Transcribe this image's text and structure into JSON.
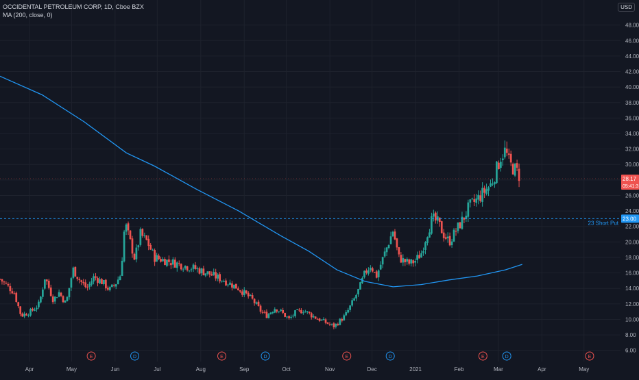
{
  "header": {
    "symbol_line": "OCCIDENTAL PETROLEUM CORP, 1D, Cboe BZX",
    "indicator_line": "MA (200, close, 0)"
  },
  "currency": "USD",
  "price_label": {
    "price": "28.17",
    "countdown": "05:41:3"
  },
  "level_label": {
    "value": "23.00",
    "text": "23 Short Put"
  },
  "colors": {
    "background": "#131722",
    "up": "#26a69a",
    "down": "#ef5350",
    "ma": "#2196f3",
    "level": "#2196f3",
    "grid": "#1e222d",
    "axis_text": "#b2b5be",
    "event_e": "#ef5350",
    "event_d": "#2196f3"
  },
  "chart_data": {
    "type": "candlestick",
    "ylim": [
      5.3,
      50.5
    ],
    "y_ticks": [
      "6.00",
      "8.00",
      "10.00",
      "12.00",
      "14.00",
      "16.00",
      "18.00",
      "20.00",
      "22.00",
      "24.00",
      "26.00",
      "28.00",
      "30.00",
      "32.00",
      "34.00",
      "36.00",
      "38.00",
      "40.00",
      "42.00",
      "44.00",
      "46.00",
      "48.00"
    ],
    "x_labels": [
      {
        "label": "Apr",
        "day": 11
      },
      {
        "label": "May",
        "day": 41
      },
      {
        "label": "Jun",
        "day": 72
      },
      {
        "label": "Jul",
        "day": 102
      },
      {
        "label": "Aug",
        "day": 133
      },
      {
        "label": "Sep",
        "day": 164
      },
      {
        "label": "Oct",
        "day": 194
      },
      {
        "label": "Nov",
        "day": 225
      },
      {
        "label": "Dec",
        "day": 255
      },
      {
        "label": "2021",
        "day": 286
      },
      {
        "label": "Feb",
        "day": 317
      },
      {
        "label": "Mar",
        "day": 345
      },
      {
        "label": "Apr",
        "day": 376
      },
      {
        "label": "May",
        "day": 406
      }
    ],
    "x_range": [
      -10,
      432
    ],
    "ma_points": [
      [
        -10,
        41.4
      ],
      [
        20,
        39.0
      ],
      [
        50,
        35.5
      ],
      [
        80,
        31.5
      ],
      [
        100,
        29.8
      ],
      [
        130,
        26.8
      ],
      [
        160,
        24.0
      ],
      [
        190,
        20.8
      ],
      [
        210,
        18.8
      ],
      [
        230,
        16.4
      ],
      [
        250,
        14.9
      ],
      [
        270,
        14.2
      ],
      [
        290,
        14.5
      ],
      [
        310,
        15.1
      ],
      [
        330,
        15.6
      ],
      [
        350,
        16.4
      ],
      [
        362,
        17.1
      ]
    ],
    "candles_keys": [
      [
        -10,
        15.2
      ],
      [
        0,
        13.5
      ],
      [
        5,
        10.5
      ],
      [
        12,
        11.0
      ],
      [
        18,
        12.0
      ],
      [
        22,
        15.5
      ],
      [
        28,
        12.5
      ],
      [
        32,
        13.5
      ],
      [
        37,
        12.0
      ],
      [
        42,
        16.5
      ],
      [
        47,
        15.0
      ],
      [
        52,
        14.0
      ],
      [
        57,
        15.5
      ],
      [
        63,
        14.8
      ],
      [
        68,
        13.8
      ],
      [
        72,
        14.5
      ],
      [
        76,
        15.8
      ],
      [
        79,
        22.5
      ],
      [
        82,
        20.5
      ],
      [
        86,
        17.8
      ],
      [
        90,
        21.0
      ],
      [
        95,
        20.0
      ],
      [
        100,
        18.0
      ],
      [
        110,
        17.5
      ],
      [
        120,
        17.0
      ],
      [
        130,
        16.5
      ],
      [
        140,
        15.8
      ],
      [
        150,
        15.0
      ],
      [
        160,
        14.0
      ],
      [
        170,
        12.5
      ],
      [
        176,
        11.0
      ],
      [
        180,
        10.5
      ],
      [
        186,
        11.5
      ],
      [
        190,
        11.0
      ],
      [
        196,
        10.0
      ],
      [
        200,
        10.8
      ],
      [
        206,
        11.2
      ],
      [
        214,
        10.3
      ],
      [
        222,
        9.6
      ],
      [
        228,
        9.1
      ],
      [
        232,
        9.8
      ],
      [
        236,
        10.5
      ],
      [
        242,
        12.5
      ],
      [
        246,
        14.0
      ],
      [
        250,
        16.0
      ],
      [
        254,
        17.0
      ],
      [
        258,
        15.5
      ],
      [
        262,
        17.5
      ],
      [
        267,
        20.0
      ],
      [
        270,
        21.5
      ],
      [
        274,
        18.0
      ],
      [
        278,
        17.5
      ],
      [
        282,
        17.2
      ],
      [
        286,
        17.6
      ],
      [
        290,
        18.5
      ],
      [
        294,
        21.0
      ],
      [
        298,
        23.0
      ],
      [
        302,
        22.5
      ],
      [
        306,
        21.0
      ],
      [
        310,
        20.0
      ],
      [
        315,
        21.5
      ],
      [
        320,
        23.0
      ],
      [
        324,
        24.5
      ],
      [
        330,
        25.5
      ],
      [
        335,
        26.5
      ],
      [
        340,
        27.5
      ],
      [
        344,
        29.5
      ],
      [
        347,
        31.2
      ],
      [
        350,
        31.8
      ],
      [
        353,
        30.0
      ],
      [
        356,
        29.5
      ],
      [
        359,
        28.9
      ],
      [
        361,
        28.17
      ]
    ],
    "events": [
      {
        "type": "E",
        "day": 55
      },
      {
        "type": "D",
        "day": 86
      },
      {
        "type": "E",
        "day": 148
      },
      {
        "type": "D",
        "day": 179
      },
      {
        "type": "E",
        "day": 237
      },
      {
        "type": "D",
        "day": 268
      },
      {
        "type": "E",
        "day": 334
      },
      {
        "type": "D",
        "day": 351
      },
      {
        "type": "E",
        "day": 410
      }
    ],
    "level": 23.0,
    "last_price": 28.17
  }
}
